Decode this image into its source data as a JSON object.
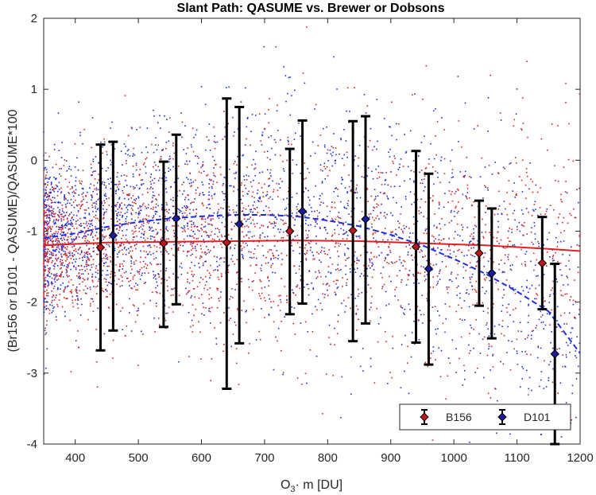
{
  "chart_data": {
    "type": "scatter",
    "title": "Slant Path: QASUME vs. Brewer or Dobsons",
    "xlabel_main": "O",
    "xlabel_sub": "3",
    "xlabel_rest": "· m [DU]",
    "ylabel": "(Br156 or D101 - QASUME)/QASUME*100",
    "xlim": [
      350,
      1200
    ],
    "ylim": [
      -4,
      2
    ],
    "xticks": [
      400,
      500,
      600,
      700,
      800,
      900,
      1000,
      1100,
      1200
    ],
    "yticks": [
      -4,
      -3,
      -2,
      -1,
      0,
      1,
      2
    ],
    "grid": false,
    "legend_position": "bottom-right",
    "series": [
      {
        "name": "B156",
        "color": "#e02020",
        "marker_fill": "#c0141c",
        "x": [
          440,
          540,
          640,
          740,
          840,
          940,
          1040,
          1140
        ],
        "y": [
          -1.23,
          -1.17,
          -1.16,
          -1.0,
          -0.99,
          -1.22,
          -1.31,
          -1.45
        ],
        "yerr_low": [
          -2.68,
          -2.35,
          -3.22,
          -2.17,
          -2.55,
          -2.57,
          -2.05,
          -2.1
        ],
        "yerr_high": [
          0.22,
          -0.02,
          0.87,
          0.16,
          0.55,
          0.13,
          -0.57,
          -0.8
        ],
        "fit": [
          [
            350,
            -1.2
          ],
          [
            450,
            -1.16
          ],
          [
            550,
            -1.15
          ],
          [
            650,
            -1.14
          ],
          [
            750,
            -1.13
          ],
          [
            850,
            -1.14
          ],
          [
            950,
            -1.17
          ],
          [
            1050,
            -1.2
          ],
          [
            1150,
            -1.25
          ],
          [
            1200,
            -1.28
          ]
        ]
      },
      {
        "name": "D101",
        "color": "#1a2ee0",
        "marker_fill": "#1a1a9a",
        "x": [
          460,
          560,
          660,
          760,
          860,
          960,
          1060,
          1160
        ],
        "y": [
          -1.06,
          -0.82,
          -0.9,
          -0.72,
          -0.83,
          -1.53,
          -1.59,
          -2.73
        ],
        "yerr_low": [
          -2.4,
          -2.03,
          -2.58,
          -2.02,
          -2.3,
          -2.88,
          -2.51,
          -4.0
        ],
        "yerr_high": [
          0.26,
          0.36,
          0.75,
          0.56,
          0.62,
          -0.19,
          -0.68,
          -1.46
        ],
        "fit": [
          [
            350,
            -1.1
          ],
          [
            400,
            -1.03
          ],
          [
            450,
            -0.94
          ],
          [
            500,
            -0.87
          ],
          [
            550,
            -0.82
          ],
          [
            600,
            -0.79
          ],
          [
            650,
            -0.77
          ],
          [
            700,
            -0.77
          ],
          [
            750,
            -0.79
          ],
          [
            800,
            -0.85
          ],
          [
            850,
            -0.93
          ],
          [
            900,
            -1.05
          ],
          [
            950,
            -1.2
          ],
          [
            1000,
            -1.39
          ],
          [
            1050,
            -1.6
          ],
          [
            1100,
            -1.85
          ],
          [
            1150,
            -2.13
          ],
          [
            1200,
            -2.72
          ]
        ]
      }
    ]
  }
}
